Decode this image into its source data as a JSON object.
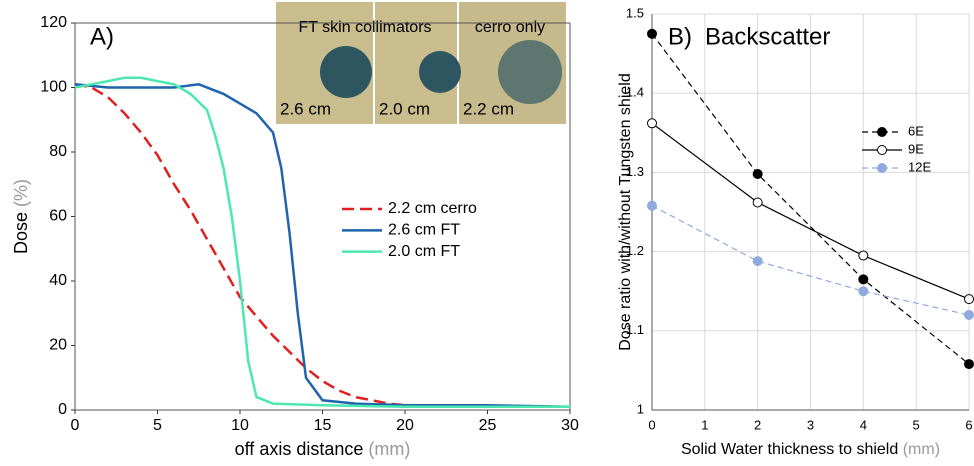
{
  "chart_data": [
    {
      "type": "line",
      "panel_label": "A)",
      "ylabel": "Dose",
      "ylabel_unit": "(%)",
      "xlabel": "off axis distance",
      "xlabel_unit": "(mm)",
      "xlim": [
        0,
        30
      ],
      "xticks": [
        0,
        5,
        10,
        15,
        20,
        25,
        30
      ],
      "ylim": [
        0,
        120
      ],
      "yticks": [
        0,
        20,
        40,
        60,
        80,
        100,
        120
      ],
      "grid": false,
      "annotations": [
        "FT skin collimators",
        "cerro only",
        "2.6 cm",
        "2.0 cm",
        "2.2 cm"
      ],
      "series": [
        {
          "name": "2.2 cm cerro",
          "color": "#e02020",
          "line_style": "dashed",
          "markers": false,
          "x": [
            0,
            1,
            2,
            3,
            4,
            5,
            6,
            7,
            8,
            9,
            10,
            11,
            12,
            13,
            14,
            15,
            16,
            17,
            18,
            19,
            20,
            22,
            23
          ],
          "values": [
            101,
            100,
            97,
            92,
            86,
            79,
            70,
            62,
            53,
            44,
            35,
            29,
            23,
            18,
            13,
            9,
            6,
            4,
            3,
            2,
            1.5,
            1,
            1
          ]
        },
        {
          "name": "2.6 cm FT",
          "color": "#1f64ad",
          "line_style": "solid",
          "markers": false,
          "x": [
            0,
            2,
            4,
            6,
            7.5,
            9,
            10,
            11,
            12,
            12.5,
            13,
            13.5,
            14,
            15,
            17,
            20,
            25,
            30
          ],
          "values": [
            101,
            100,
            100,
            100,
            101,
            98,
            95,
            92,
            86,
            75,
            55,
            30,
            10,
            3,
            2,
            1.5,
            1.5,
            1
          ]
        },
        {
          "name": "2.0 cm FT",
          "color": "#4de8b0",
          "line_style": "solid",
          "markers": false,
          "x": [
            0,
            2,
            3,
            4,
            5,
            6,
            7,
            8,
            8.5,
            9,
            9.5,
            10,
            10.5,
            11,
            12,
            15,
            20,
            30
          ],
          "values": [
            100,
            102,
            103,
            103,
            102,
            101,
            98,
            93,
            85,
            75,
            60,
            40,
            15,
            4,
            2,
            1.5,
            1,
            1
          ]
        }
      ]
    },
    {
      "type": "line",
      "panel_label": "B)",
      "title": "Backscatter",
      "ylabel": "Dose ratio with/without Tungsten shield",
      "xlabel": "Solid Water thickness to shield",
      "xlabel_unit": "(mm)",
      "xlim": [
        0,
        6
      ],
      "xticks": [
        0,
        1,
        2,
        3,
        4,
        5,
        6
      ],
      "ylim": [
        1,
        1.5
      ],
      "yticks": [
        1,
        1.1,
        1.2,
        1.3,
        1.4,
        1.5
      ],
      "grid": true,
      "series": [
        {
          "name": "6E",
          "color": "#000000",
          "line_style": "dashed",
          "markers": true,
          "marker_fill": "filled",
          "x": [
            0,
            2,
            4,
            6
          ],
          "values": [
            1.475,
            1.298,
            1.165,
            1.058
          ]
        },
        {
          "name": "9E",
          "color": "#000000",
          "line_style": "solid",
          "markers": true,
          "marker_fill": "hollow",
          "x": [
            0,
            2,
            4,
            6
          ],
          "values": [
            1.362,
            1.262,
            1.195,
            1.14
          ]
        },
        {
          "name": "12E",
          "color": "#8faadc",
          "line_style": "dashed",
          "markers": true,
          "marker_fill": "filled",
          "x": [
            0,
            2,
            4,
            6
          ],
          "values": [
            1.258,
            1.188,
            1.15,
            1.12
          ]
        }
      ]
    }
  ]
}
